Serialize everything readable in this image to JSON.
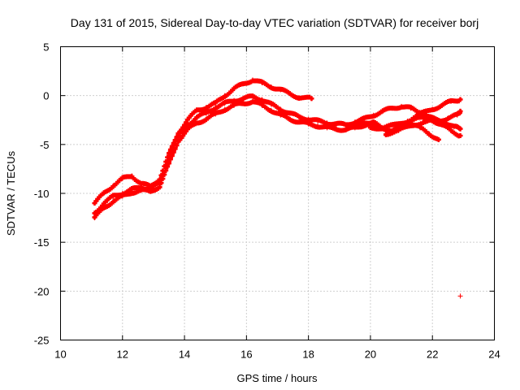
{
  "chart_data": {
    "type": "scatter",
    "title": "Day 131 of 2015, Sidereal Day-to-day VTEC variation (SDTVAR) for receiver borj",
    "xlabel": "GPS time / hours",
    "ylabel": "SDTVAR / TECUs",
    "xlim": [
      10,
      24
    ],
    "ylim": [
      -25,
      5
    ],
    "xticks": [
      10,
      12,
      14,
      16,
      18,
      20,
      22,
      24
    ],
    "yticks": [
      5,
      0,
      -5,
      -10,
      -15,
      -20,
      -25
    ],
    "xtick_labels": [
      "10",
      "12",
      "14",
      "16",
      "18",
      "20",
      "22",
      "24"
    ],
    "ytick_labels": [
      "5",
      "0",
      "-5",
      "-10",
      "-15",
      "-20",
      "-25"
    ],
    "grid": true,
    "marker": "+",
    "color": "#ff0000",
    "series": [
      {
        "name": "track-upper",
        "x": [
          11.1,
          11.4,
          11.7,
          12.0,
          12.3,
          12.6,
          12.9,
          13.2,
          13.5,
          13.8,
          14.1,
          14.4,
          14.7,
          15.0,
          15.3,
          15.6,
          15.9,
          16.2,
          16.5,
          16.8,
          17.1,
          17.4,
          17.7,
          18.1
        ],
        "y": [
          -11.0,
          -10.0,
          -9.2,
          -8.5,
          -8.2,
          -9.0,
          -9.3,
          -8.5,
          -6.0,
          -3.8,
          -2.5,
          -1.5,
          -1.2,
          -0.8,
          0.0,
          0.7,
          1.2,
          1.6,
          1.3,
          0.9,
          0.6,
          0.2,
          -0.2,
          -0.3
        ]
      },
      {
        "name": "track-middle",
        "x": [
          11.1,
          11.4,
          11.7,
          12.0,
          12.3,
          12.6,
          12.9,
          13.2,
          13.5,
          13.8,
          14.1,
          14.4,
          14.7,
          15.0,
          15.3,
          15.6,
          15.9,
          16.2,
          16.5,
          16.8,
          17.1,
          17.4,
          17.7,
          18.0,
          18.3,
          18.6,
          18.9,
          19.2,
          19.5,
          19.8,
          20.1,
          20.4,
          20.7,
          21.0,
          21.3,
          21.6,
          21.9,
          22.2,
          22.5,
          22.8,
          22.9
        ],
        "y": [
          -12.0,
          -11.0,
          -10.3,
          -10.0,
          -9.6,
          -9.4,
          -9.5,
          -9.0,
          -6.5,
          -4.2,
          -3.0,
          -2.2,
          -1.8,
          -1.2,
          -0.8,
          -0.5,
          -0.3,
          -0.1,
          -0.4,
          -0.9,
          -1.4,
          -1.8,
          -2.2,
          -2.4,
          -2.6,
          -2.8,
          -2.9,
          -3.0,
          -2.7,
          -2.4,
          -2.0,
          -1.6,
          -1.3,
          -1.1,
          -1.3,
          -1.7,
          -2.2,
          -2.6,
          -2.3,
          -2.0,
          -1.6
        ]
      },
      {
        "name": "track-lower",
        "x": [
          11.1,
          11.4,
          11.7,
          12.0,
          12.3,
          12.6,
          12.9,
          13.2,
          13.5,
          13.8,
          14.1,
          14.4,
          14.7,
          15.0,
          15.3,
          15.6,
          15.9,
          16.2,
          16.5,
          16.8,
          17.1,
          17.4,
          17.7,
          18.0,
          18.3,
          18.6,
          18.9,
          19.2,
          19.5,
          19.8,
          20.1,
          20.4,
          20.7,
          21.0,
          21.3,
          21.6,
          21.9,
          22.2
        ],
        "y": [
          -12.5,
          -11.5,
          -10.8,
          -10.3,
          -9.9,
          -9.7,
          -9.8,
          -9.3,
          -7.0,
          -4.6,
          -3.5,
          -2.8,
          -2.4,
          -1.9,
          -1.4,
          -1.0,
          -0.8,
          -0.6,
          -1.0,
          -1.5,
          -2.0,
          -2.4,
          -2.7,
          -2.9,
          -3.1,
          -3.3,
          -3.4,
          -3.5,
          -3.3,
          -3.0,
          -2.8,
          -3.3,
          -3.6,
          -3.2,
          -2.8,
          -3.3,
          -3.9,
          -4.5
        ]
      },
      {
        "name": "track-evening-a",
        "x": [
          20.0,
          20.4,
          20.8,
          21.2,
          21.6,
          22.0,
          22.3,
          22.6,
          22.9
        ],
        "y": [
          -3.2,
          -3.4,
          -3.0,
          -2.6,
          -2.3,
          -2.5,
          -3.0,
          -3.6,
          -4.1
        ]
      },
      {
        "name": "track-evening-b",
        "x": [
          19.6,
          20.0,
          20.4,
          20.8,
          21.2,
          21.6,
          22.0,
          22.3,
          22.6,
          22.9
        ],
        "y": [
          -3.0,
          -2.8,
          -3.3,
          -3.0,
          -2.6,
          -1.9,
          -1.4,
          -1.0,
          -0.6,
          -0.4
        ]
      },
      {
        "name": "track-evening-c",
        "x": [
          20.5,
          20.9,
          21.3,
          21.7,
          22.1,
          22.4,
          22.7,
          22.9
        ],
        "y": [
          -3.9,
          -3.6,
          -3.1,
          -2.7,
          -2.5,
          -2.7,
          -3.2,
          -3.4
        ]
      },
      {
        "name": "outlier",
        "x": [
          22.9
        ],
        "y": [
          -20.5
        ]
      }
    ]
  }
}
